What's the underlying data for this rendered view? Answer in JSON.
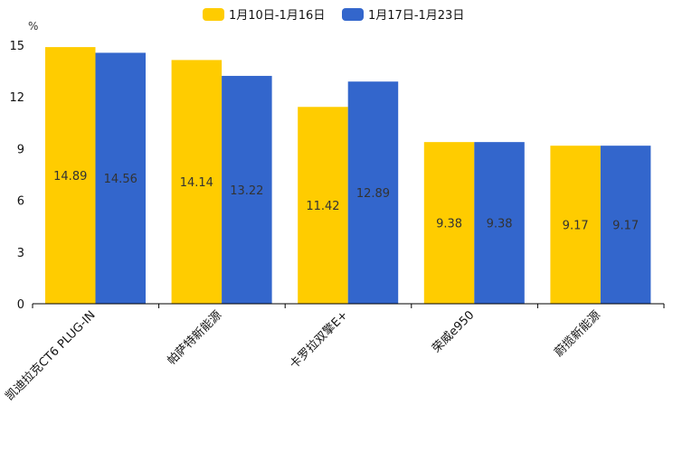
{
  "chart_data": {
    "type": "bar",
    "unit_label": "%",
    "categories": [
      "凯迪拉克CT6 PLUG-IN",
      "帕萨特新能源",
      "卡罗拉双擎E+",
      "荣威e950",
      "蔚揽新能源"
    ],
    "series": [
      {
        "name": "1月10日-1月16日",
        "color": "#ffcc00",
        "values": [
          14.89,
          14.14,
          11.42,
          9.38,
          9.17
        ]
      },
      {
        "name": "1月17日-1月23日",
        "color": "#3366cc",
        "values": [
          14.56,
          13.22,
          12.89,
          9.38,
          9.17
        ]
      }
    ],
    "y_ticks": [
      0,
      3,
      6,
      9,
      12,
      15
    ],
    "ylim": [
      0,
      15
    ],
    "legend_position": "top-center"
  }
}
